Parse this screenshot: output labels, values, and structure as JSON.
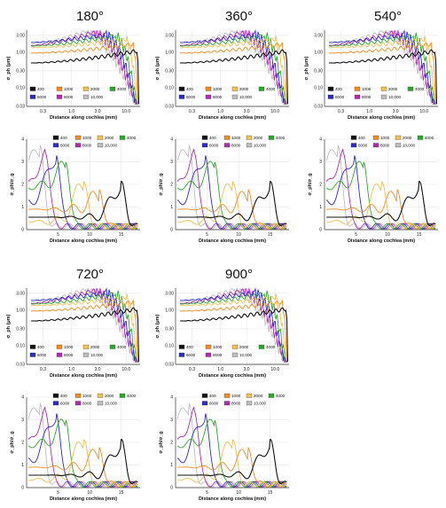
{
  "figure": {
    "titles": [
      "180°",
      "360°",
      "540°",
      "720°",
      "900°"
    ],
    "series_colors": {
      "400": "#111111",
      "1000": "#f28c1c",
      "2000": "#f2c14e",
      "4000": "#2aa82a",
      "6000": "#2b2bc9",
      "8000": "#b02bb0",
      "10,000": "#bdbdbd"
    }
  },
  "chart_data": [
    {
      "type": "line",
      "panel": "180°-top",
      "xlabel": "Distance along cochlea (mm)",
      "ylabel": "σ_ph (μm)",
      "xscale": "log",
      "yscale": "log",
      "xticks": [
        "0.3",
        "1.0",
        "3.0",
        "10.0"
      ],
      "yticks": [
        "0.03",
        "0.10",
        "0.30",
        "1.00",
        "3.00"
      ],
      "legend": [
        "400",
        "1000",
        "2000",
        "4000",
        "6000",
        "8000",
        "10,000"
      ]
    },
    {
      "type": "line",
      "panel": "180°-bottom",
      "xlabel": "Distance along cochlea (mm)",
      "ylabel": "σ_ph/σ_g",
      "xticks": [
        "5",
        "10",
        "15"
      ],
      "yticks": [
        "0",
        "1",
        "2",
        "3",
        "4"
      ],
      "legend": [
        "400",
        "1000",
        "2000",
        "4000",
        "6000",
        "8000",
        "10,000"
      ]
    },
    {
      "type": "line",
      "panel": "360°-top",
      "xlabel": "Distance along cochlea (mm)",
      "ylabel": "σ_ph (μm)",
      "xscale": "log",
      "yscale": "log",
      "xticks": [
        "0.3",
        "1.0",
        "3.0",
        "10.0"
      ],
      "yticks": [
        "0.03",
        "0.10",
        "0.30",
        "1.00",
        "3.00"
      ],
      "legend": [
        "400",
        "1000",
        "2000",
        "4000",
        "6000",
        "8000",
        "10,000"
      ]
    },
    {
      "type": "line",
      "panel": "360°-bottom",
      "xlabel": "Distance along cochlea (mm)",
      "ylabel": "σ_ph/σ_g",
      "xticks": [
        "5",
        "10",
        "15"
      ],
      "yticks": [
        "0",
        "1",
        "2",
        "3",
        "4"
      ],
      "legend": [
        "400",
        "1000",
        "2000",
        "4000",
        "6000",
        "8000",
        "10,000"
      ]
    },
    {
      "type": "line",
      "panel": "540°-top",
      "xlabel": "Distance along cochlea (mm)",
      "ylabel": "σ_ph (μm)",
      "xscale": "log",
      "yscale": "log",
      "xticks": [
        "0.3",
        "1.0",
        "3.0",
        "10.0"
      ],
      "yticks": [
        "0.03",
        "0.10",
        "0.30",
        "1.00",
        "3.00"
      ],
      "legend": [
        "400",
        "1000",
        "2000",
        "4000",
        "6000",
        "8000",
        "10,000"
      ]
    },
    {
      "type": "line",
      "panel": "540°-bottom",
      "xlabel": "Distance along cochlea (mm)",
      "ylabel": "σ_ph/σ_g",
      "xticks": [
        "5",
        "10",
        "15"
      ],
      "yticks": [
        "0",
        "1",
        "2",
        "3",
        "4"
      ],
      "legend": [
        "400",
        "1000",
        "2000",
        "4000",
        "6000",
        "8000",
        "10,000"
      ]
    },
    {
      "type": "line",
      "panel": "720°-top",
      "xlabel": "Distance along cochlea (mm)",
      "ylabel": "σ_ph (μm)",
      "xscale": "log",
      "yscale": "log",
      "xticks": [
        "0.3",
        "1.0",
        "3.0",
        "10.0"
      ],
      "yticks": [
        "0.03",
        "0.10",
        "0.30",
        "1.00",
        "3.00"
      ],
      "legend": [
        "400",
        "1000",
        "2000",
        "4000",
        "6000",
        "8000",
        "10,000"
      ]
    },
    {
      "type": "line",
      "panel": "720°-bottom",
      "xlabel": "Distance along cochlea (mm)",
      "ylabel": "σ_ph/σ_g",
      "xticks": [
        "5",
        "10",
        "15"
      ],
      "yticks": [
        "0",
        "1",
        "2",
        "3",
        "4"
      ],
      "legend": [
        "400",
        "1000",
        "2000",
        "4000",
        "6000",
        "8000",
        "10,000"
      ]
    },
    {
      "type": "line",
      "panel": "900°-top",
      "xlabel": "Distance along cochlea (mm)",
      "ylabel": "σ_ph (μm)",
      "xscale": "log",
      "yscale": "log",
      "xticks": [
        "0.3",
        "1.0",
        "3.0",
        "10.0"
      ],
      "yticks": [
        "0.03",
        "0.10",
        "0.30",
        "1.00",
        "3.00"
      ],
      "legend": [
        "400",
        "1000",
        "2000",
        "4000",
        "6000",
        "8000",
        "10,000"
      ]
    },
    {
      "type": "line",
      "panel": "900°-bottom",
      "xlabel": "Distance along cochlea (mm)",
      "ylabel": "σ_ph/σ_g",
      "xticks": [
        "5",
        "10",
        "15"
      ],
      "yticks": [
        "0",
        "1",
        "2",
        "3",
        "4"
      ],
      "legend": [
        "400",
        "1000",
        "2000",
        "4000",
        "6000",
        "8000",
        "10,000"
      ]
    }
  ]
}
